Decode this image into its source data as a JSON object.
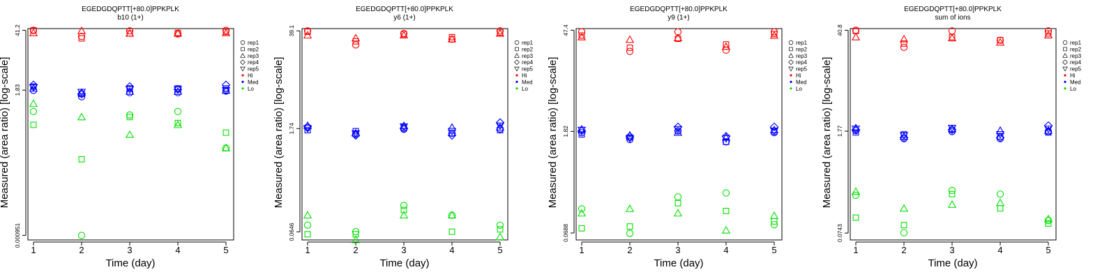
{
  "figure": {
    "name": "EGEDGDQPTT[+80.0]PPKPLK measured area ratios"
  },
  "legend": {
    "replicates": [
      "rep1",
      "rep2",
      "rep3",
      "rep4",
      "rep5"
    ],
    "levels": [
      "Hi",
      "Med",
      "Lo"
    ]
  },
  "colors": {
    "Hi": "#ff0000",
    "Med": "#0000ff",
    "Lo": "#00e000",
    "axis": "#000000"
  },
  "chart_data": [
    {
      "type": "scatter",
      "title": "EGEDGDQPTT[+80.0]PPKPLK",
      "subtitle": "b10 (1+)",
      "xlabel": "Time (day)",
      "ylabel": "Measured (area ratio) [log-scale]",
      "x": [
        1,
        2,
        3,
        4,
        5
      ],
      "x_ticks": [
        "1",
        "2",
        "3",
        "4",
        "5"
      ],
      "y_scale": "log",
      "ylim": [
        0.00075,
        45
      ],
      "y_ticks": [
        {
          "v": 0.000951,
          "label": "0.000951"
        },
        {
          "v": 1.83,
          "label": "1.83"
        },
        {
          "v": 41.2,
          "label": "41.2"
        }
      ],
      "series": {
        "Hi": {
          "rep1": [
            41.2,
            30.0,
            40.0,
            34.0,
            41.0
          ],
          "rep2": [
            41.0,
            27.0,
            35.0,
            36.0,
            38.0
          ],
          "rep3": [
            36.0,
            40.0,
            35.0,
            35.0,
            36.0
          ]
        },
        "Med": {
          "rep1": [
            1.8,
            1.3,
            1.6,
            1.6,
            1.75
          ],
          "rep2": [
            2.2,
            1.5,
            2.0,
            2.0,
            2.0
          ],
          "rep3": [
            2.0,
            1.6,
            1.7,
            1.7,
            1.8
          ],
          "rep4": [
            2.4,
            1.5,
            2.2,
            1.9,
            2.4
          ],
          "rep5": [
            2.1,
            1.65,
            1.9,
            1.9,
            1.8
          ]
        },
        "Lo": {
          "rep1": [
            0.6,
            0.00095,
            0.5,
            0.6,
            0.09
          ],
          "rep2": [
            0.3,
            0.05,
            0.45,
            0.33,
            0.2
          ],
          "rep3": [
            0.9,
            0.45,
            0.18,
            0.3,
            0.09
          ]
        }
      }
    },
    {
      "type": "scatter",
      "title": "EGEDGDQPTT[+80.0]PPKPLK",
      "subtitle": "y6 (1+)",
      "xlabel": "Time (day)",
      "ylabel": "Measured (area ratio) [log-scale]",
      "x": [
        1,
        2,
        3,
        4,
        5
      ],
      "x_ticks": [
        "1",
        "2",
        "3",
        "4",
        "5"
      ],
      "y_scale": "log",
      "ylim": [
        0.05,
        42
      ],
      "y_ticks": [
        {
          "v": 0.0646,
          "label": "0.0646"
        },
        {
          "v": 1.74,
          "label": "1.74"
        },
        {
          "v": 39.1,
          "label": "39.1"
        }
      ],
      "series": {
        "Hi": {
          "rep1": [
            39.1,
            25.0,
            36.0,
            30.0,
            39.0
          ],
          "rep2": [
            38.0,
            28.0,
            35.0,
            32.0,
            37.0
          ],
          "rep3": [
            34.0,
            31.0,
            34.0,
            30.0,
            36.0
          ]
        },
        "Med": {
          "rep1": [
            1.8,
            1.45,
            1.7,
            1.5,
            1.72
          ],
          "rep2": [
            1.65,
            1.6,
            1.8,
            1.5,
            1.65
          ],
          "rep3": [
            1.9,
            1.5,
            1.9,
            1.8,
            1.8
          ],
          "rep4": [
            1.85,
            1.4,
            1.75,
            1.4,
            2.1
          ],
          "rep5": [
            1.75,
            1.48,
            1.85,
            1.6,
            1.9
          ]
        },
        "Lo": {
          "rep1": [
            0.08,
            0.065,
            0.15,
            0.11,
            0.08
          ],
          "rep2": [
            0.06,
            0.06,
            0.13,
            0.065,
            0.07
          ],
          "rep3": [
            0.11,
            0.05,
            0.11,
            0.11,
            0.055
          ]
        }
      }
    },
    {
      "type": "scatter",
      "title": "EGEDGDQPTT[+80.0]PPKPLK",
      "subtitle": "y9 (1+)",
      "xlabel": "Time (day)",
      "ylabel": "Measured (area ratio) [log-scale]",
      "x": [
        1,
        2,
        3,
        4,
        5
      ],
      "x_ticks": [
        "1",
        "2",
        "3",
        "4",
        "5"
      ],
      "y_scale": "log",
      "ylim": [
        0.055,
        50
      ],
      "y_ticks": [
        {
          "v": 0.0688,
          "label": "0.0688"
        },
        {
          "v": 1.82,
          "label": "1.82"
        },
        {
          "v": 47.4,
          "label": "47.4"
        }
      ],
      "series": {
        "Hi": {
          "rep1": [
            45.0,
            24.0,
            45.0,
            25.0,
            45.0
          ],
          "rep2": [
            40.0,
            27.0,
            36.0,
            30.0,
            42.0
          ],
          "rep3": [
            38.0,
            35.0,
            37.0,
            28.0,
            40.0
          ]
        },
        "Med": {
          "rep1": [
            1.75,
            1.4,
            1.85,
            1.3,
            1.75
          ],
          "rep2": [
            1.65,
            1.5,
            1.85,
            1.3,
            1.8
          ],
          "rep3": [
            1.95,
            1.6,
            1.75,
            1.5,
            1.9
          ],
          "rep4": [
            1.85,
            1.55,
            2.1,
            1.55,
            2.1
          ],
          "rep5": [
            1.9,
            1.45,
            1.95,
            1.45,
            1.85
          ]
        },
        "Lo": {
          "rep1": [
            0.15,
            0.068,
            0.22,
            0.25,
            0.09
          ],
          "rep2": [
            0.08,
            0.085,
            0.18,
            0.14,
            0.1
          ],
          "rep3": [
            0.13,
            0.15,
            0.13,
            0.075,
            0.12
          ]
        }
      }
    },
    {
      "type": "scatter",
      "title": "EGEDGDQPTT[+80.0]PPKPLK",
      "subtitle": "sum of ions",
      "xlabel": "Time (day)",
      "ylabel": "Measured (area ratio) [log-scale]",
      "x": [
        1,
        2,
        3,
        4,
        5
      ],
      "x_ticks": [
        "1",
        "2",
        "3",
        "4",
        "5"
      ],
      "y_scale": "log",
      "ylim": [
        0.06,
        43
      ],
      "y_ticks": [
        {
          "v": 0.0743,
          "label": "0.0743"
        },
        {
          "v": 1.77,
          "label": "1.77"
        },
        {
          "v": 40.8,
          "label": "40.8"
        }
      ],
      "series": {
        "Hi": {
          "rep1": [
            40.8,
            24.0,
            40.0,
            30.0,
            40.0
          ],
          "rep2": [
            40.0,
            27.0,
            33.0,
            30.0,
            37.0
          ],
          "rep3": [
            33.0,
            31.0,
            32.0,
            28.0,
            35.0
          ]
        },
        "Med": {
          "rep1": [
            1.8,
            1.4,
            1.75,
            1.4,
            1.75
          ],
          "rep2": [
            1.7,
            1.6,
            1.85,
            1.5,
            1.7
          ],
          "rep3": [
            1.95,
            1.5,
            1.9,
            1.8,
            1.8
          ],
          "rep4": [
            1.85,
            1.45,
            1.85,
            1.45,
            2.1
          ],
          "rep5": [
            1.9,
            1.55,
            1.95,
            1.6,
            1.9
          ]
        },
        "Lo": {
          "rep1": [
            0.24,
            0.075,
            0.28,
            0.25,
            0.11
          ],
          "rep2": [
            0.12,
            0.095,
            0.25,
            0.16,
            0.1
          ],
          "rep3": [
            0.27,
            0.16,
            0.18,
            0.19,
            0.115
          ]
        }
      }
    }
  ]
}
